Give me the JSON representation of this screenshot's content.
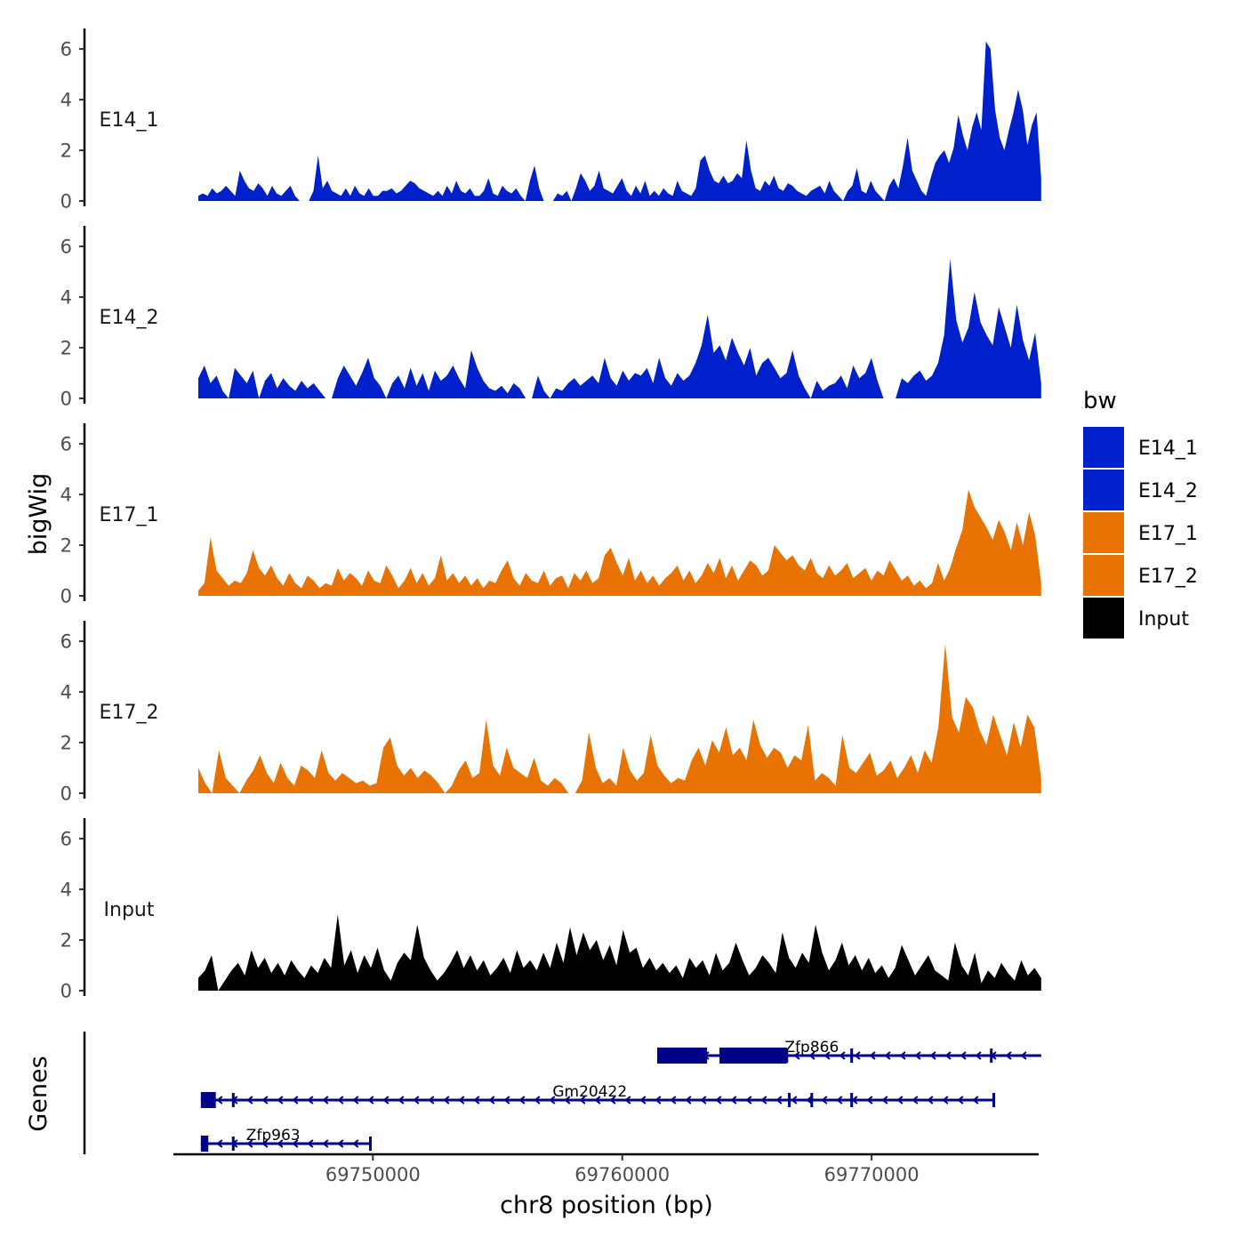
{
  "chart_data": {
    "type": "area",
    "ylabel": "bigWig",
    "xlabel": "chr8 position (bp)",
    "genes_label": "Genes",
    "xlim": [
      69742000,
      69776700
    ],
    "ylim": [
      0,
      6.6
    ],
    "yticks": [
      0,
      2,
      4,
      6
    ],
    "xticks": [
      69750000,
      69760000,
      69770000
    ],
    "xtick_labels": [
      "69750000",
      "69760000",
      "69770000"
    ],
    "legend": {
      "title": "bw",
      "items": [
        {
          "label": "E14_1",
          "color": "#0020CC"
        },
        {
          "label": "E14_2",
          "color": "#0020CC"
        },
        {
          "label": "E17_1",
          "color": "#E87303"
        },
        {
          "label": "E17_2",
          "color": "#E87303"
        },
        {
          "label": "Input",
          "color": "#000000"
        }
      ]
    },
    "series": [
      {
        "name": "E14_1",
        "color": "#0020CC",
        "x_start": 69743000,
        "x_end": 69776800,
        "values": [
          0.2,
          0.3,
          0.2,
          0.5,
          0.3,
          0.4,
          0.6,
          0.4,
          0.2,
          1.2,
          0.8,
          0.5,
          0.4,
          0.7,
          0.5,
          0.2,
          0.6,
          0.3,
          0.2,
          0.4,
          0.6,
          0.2,
          0,
          0,
          0,
          0.4,
          1.8,
          0.5,
          0.8,
          0.4,
          0.3,
          0.2,
          0.5,
          0.2,
          0.6,
          0.3,
          0.2,
          0.5,
          0.2,
          0.2,
          0.4,
          0.4,
          0.5,
          0.3,
          0.4,
          0.6,
          0.8,
          0.7,
          0.5,
          0.4,
          0.3,
          0.2,
          0.4,
          0.2,
          0.6,
          0.3,
          0.8,
          0.4,
          0.3,
          0.5,
          0.2,
          0.2,
          0.4,
          0.9,
          0.3,
          0.2,
          0.6,
          0.4,
          0.3,
          0.5,
          0.2,
          0,
          0.8,
          1.4,
          0.5,
          0,
          0,
          0,
          0.3,
          0.2,
          0.4,
          0,
          0.5,
          1.1,
          0.8,
          0.4,
          0.6,
          1.2,
          0.5,
          0.4,
          0.3,
          0.6,
          0.9,
          0.4,
          0.2,
          0.6,
          0.3,
          0.8,
          0.2,
          0.4,
          0.2,
          0.5,
          0.3,
          0.2,
          0.8,
          0.4,
          0.3,
          0.2,
          0.5,
          1.6,
          1.8,
          1.2,
          0.8,
          0.7,
          1.0,
          0.7,
          0.8,
          1.1,
          0.9,
          2.4,
          1.2,
          0.5,
          0.4,
          0.8,
          0.6,
          1.0,
          0.5,
          0.4,
          0.7,
          0.6,
          0.4,
          0.3,
          0.2,
          0.4,
          0.5,
          0.6,
          0.3,
          0.8,
          0.4,
          0.2,
          0,
          0.4,
          0.6,
          1.3,
          0.4,
          0.3,
          0.8,
          0.4,
          0.2,
          0,
          0.6,
          0.9,
          0.5,
          1.4,
          2.5,
          1.2,
          0.8,
          0.4,
          0.2,
          0.9,
          1.5,
          1.8,
          2.0,
          1.5,
          2.1,
          3.4,
          2.6,
          2.0,
          2.9,
          3.5,
          2.8,
          6.3,
          6.0,
          3.6,
          2.5,
          2.0,
          2.8,
          3.5,
          4.4,
          3.6,
          2.2,
          3.0,
          3.5,
          0.9
        ]
      },
      {
        "name": "E14_2",
        "color": "#0020CC",
        "x_start": 69743000,
        "x_end": 69776800,
        "values": [
          0.8,
          1.3,
          0.6,
          0.9,
          0.3,
          0,
          1.2,
          0.9,
          0.6,
          1.1,
          0,
          0.7,
          1.0,
          0.4,
          0.8,
          0.5,
          0.3,
          0.7,
          0.4,
          0.6,
          0.3,
          0,
          0,
          0.8,
          1.3,
          0.9,
          0.5,
          1.0,
          1.6,
          0.8,
          0.5,
          0,
          0.6,
          0.9,
          0.4,
          1.2,
          0.5,
          1.0,
          0.3,
          1.1,
          0.7,
          0.9,
          1.3,
          0.8,
          0.4,
          1.9,
          1.2,
          0.7,
          0.4,
          0.3,
          0.5,
          0.2,
          0.6,
          0.4,
          0,
          0,
          0.9,
          0.3,
          0,
          0.4,
          0.3,
          0.6,
          0.8,
          0.5,
          0.7,
          0.9,
          0.6,
          1.6,
          0.8,
          0.5,
          1.1,
          0.7,
          1.0,
          0.9,
          1.2,
          0.6,
          1.6,
          0.8,
          0.5,
          1.0,
          0.7,
          0.9,
          1.4,
          2.1,
          3.3,
          1.8,
          2.1,
          1.5,
          2.4,
          1.8,
          1.3,
          2.0,
          0.9,
          1.4,
          1.6,
          1.2,
          0.8,
          1.0,
          1.9,
          0.9,
          0.4,
          0,
          0.7,
          0.3,
          0.5,
          0.6,
          0.9,
          0.4,
          1.3,
          0.8,
          1.0,
          1.6,
          0.7,
          0,
          0,
          0,
          0.8,
          0.6,
          0.9,
          1.1,
          0.7,
          0.9,
          1.4,
          2.5,
          5.5,
          3.1,
          2.2,
          2.8,
          4.2,
          3.0,
          2.5,
          2.1,
          3.6,
          2.8,
          2.0,
          3.7,
          2.3,
          1.5,
          2.6,
          0.6
        ]
      },
      {
        "name": "E17_1",
        "color": "#E87303",
        "x_start": 69743000,
        "x_end": 69776800,
        "values": [
          0.2,
          0.5,
          2.3,
          1.0,
          0.7,
          0.4,
          0.6,
          0.5,
          0.9,
          1.8,
          1.1,
          0.8,
          1.2,
          0.7,
          0.4,
          0.9,
          0.5,
          0.3,
          0.8,
          0.6,
          0.3,
          0.5,
          0.4,
          1.1,
          0.6,
          0.9,
          0.7,
          0.4,
          1.0,
          0.6,
          0.5,
          1.2,
          0.8,
          0.3,
          0.6,
          1.1,
          0.5,
          0.9,
          0.4,
          0.7,
          1.6,
          0.6,
          0.9,
          0.5,
          0.8,
          0.4,
          0.7,
          0.3,
          0.6,
          0.5,
          1.0,
          1.4,
          0.7,
          0.4,
          0.9,
          0.6,
          0.5,
          1.0,
          0.4,
          0.7,
          0.8,
          0.3,
          0.9,
          0.6,
          1.0,
          0.5,
          0.7,
          1.6,
          1.9,
          1.3,
          0.8,
          1.5,
          0.6,
          1.0,
          0.5,
          0.8,
          0.4,
          0.7,
          0.9,
          1.2,
          0.6,
          1.0,
          0.5,
          0.8,
          1.3,
          0.9,
          1.5,
          0.7,
          1.2,
          0.6,
          1.0,
          1.4,
          1.2,
          0.8,
          1.0,
          2.0,
          1.7,
          1.4,
          1.6,
          1.2,
          1.0,
          1.5,
          0.9,
          0.7,
          1.2,
          0.8,
          1.0,
          1.3,
          0.7,
          0.9,
          1.1,
          0.6,
          1.0,
          0.8,
          1.4,
          1.0,
          0.6,
          0.8,
          0.4,
          0.6,
          0.3,
          0.5,
          1.3,
          0.6,
          1.1,
          1.9,
          2.6,
          4.2,
          3.5,
          3.1,
          2.7,
          2.2,
          3.0,
          2.5,
          1.8,
          2.9,
          2.0,
          3.3,
          2.4,
          0.5
        ]
      },
      {
        "name": "E17_2",
        "color": "#E87303",
        "x_start": 69743000,
        "x_end": 69776800,
        "values": [
          1.0,
          0.4,
          0,
          1.7,
          0.6,
          0.3,
          0,
          0.5,
          0.9,
          1.5,
          0.8,
          0.4,
          1.2,
          0.6,
          0.3,
          1.1,
          0.9,
          0.6,
          1.7,
          0.8,
          0.5,
          0.8,
          0.6,
          0.4,
          0.5,
          0.3,
          0.4,
          1.8,
          2.2,
          1.1,
          0.7,
          1.0,
          0.6,
          0.9,
          0.7,
          0.4,
          0,
          0.3,
          0.9,
          1.3,
          0.6,
          0.8,
          2.9,
          1.1,
          0.7,
          1.8,
          1.0,
          0.8,
          0.6,
          1.4,
          0.5,
          0.3,
          0.6,
          0.4,
          0,
          0,
          0.5,
          2.4,
          1.0,
          0.4,
          0.6,
          0.3,
          1.8,
          0.9,
          0.5,
          0.8,
          2.3,
          1.1,
          0.7,
          0.4,
          0.6,
          0.5,
          1.3,
          1.8,
          1.1,
          2.1,
          1.6,
          2.6,
          1.5,
          1.8,
          1.3,
          2.9,
          1.9,
          1.4,
          1.8,
          1.6,
          1.0,
          1.5,
          1.3,
          2.7,
          0.5,
          0.8,
          0.6,
          0.3,
          2.3,
          1.0,
          0.8,
          1.2,
          1.6,
          0.7,
          0.9,
          1.3,
          0.6,
          1.0,
          1.5,
          0.8,
          1.7,
          1.2,
          2.6,
          5.9,
          3.0,
          2.4,
          3.8,
          3.4,
          2.5,
          1.9,
          3.1,
          2.3,
          1.5,
          2.8,
          1.8,
          3.1,
          2.6,
          0.6
        ]
      },
      {
        "name": "Input",
        "color": "#000000",
        "x_start": 69743000,
        "x_end": 69776800,
        "values": [
          0.5,
          0.8,
          1.4,
          0,
          0.4,
          0.8,
          1.1,
          0.6,
          1.6,
          0.9,
          1.3,
          0.7,
          1.1,
          0.6,
          1.2,
          0.8,
          0.5,
          1.0,
          0.7,
          1.3,
          0.9,
          3.0,
          1.0,
          1.6,
          0.7,
          1.4,
          0.9,
          1.7,
          0.8,
          0.4,
          1.1,
          1.5,
          1.2,
          2.6,
          1.3,
          0.8,
          0.4,
          0.7,
          1.1,
          1.6,
          0.9,
          1.4,
          0.8,
          1.2,
          0.6,
          0.9,
          1.3,
          0.7,
          1.6,
          0.9,
          1.2,
          0.8,
          1.5,
          0.9,
          1.9,
          1.1,
          2.5,
          1.4,
          2.3,
          1.6,
          2.0,
          1.2,
          1.8,
          1.0,
          2.4,
          1.5,
          1.7,
          0.9,
          1.3,
          0.8,
          1.1,
          0.7,
          1.0,
          0.5,
          1.3,
          0.9,
          1.2,
          0.6,
          1.5,
          0.8,
          1.1,
          1.9,
          1.2,
          0.6,
          0.9,
          1.4,
          1.1,
          0.7,
          2.3,
          1.3,
          0.9,
          1.5,
          1.1,
          2.6,
          1.5,
          0.8,
          1.2,
          1.9,
          1.0,
          1.4,
          0.8,
          1.3,
          0.7,
          1.0,
          0.5,
          0.9,
          1.8,
          1.2,
          0.6,
          1.0,
          1.4,
          0.8,
          0.6,
          0.4,
          1.9,
          1.0,
          0.6,
          1.5,
          0.3,
          0.8,
          0.5,
          1.1,
          0.7,
          0.4,
          1.2,
          0.6,
          0.9,
          0.5
        ]
      }
    ],
    "genes": [
      {
        "name": "Zfp866",
        "row": 0,
        "color": "#00008B",
        "strand": "-",
        "start": 69761400,
        "end": 69776800,
        "exons": [
          [
            69761400,
            69763400
          ],
          [
            69763900,
            69766600
          ]
        ],
        "boundaries": [
          69766600,
          69769200,
          69774800
        ],
        "label_pos": 69767600
      },
      {
        "name": "Gm20422",
        "row": 1,
        "color": "#00008B",
        "strand": "-",
        "start": 69743100,
        "end": 69774900,
        "exons": [
          [
            69743100,
            69743700
          ]
        ],
        "boundaries": [
          69744400,
          69766700,
          69767600,
          69769200,
          69774900
        ],
        "label_pos": 69758700
      },
      {
        "name": "Zfp963",
        "row": 2,
        "color": "#00008B",
        "strand": "-",
        "start": 69743100,
        "end": 69749900,
        "exons": [
          [
            69743100,
            69743400
          ]
        ],
        "boundaries": [
          69744400,
          69749900
        ],
        "label_pos": 69746000
      }
    ]
  }
}
